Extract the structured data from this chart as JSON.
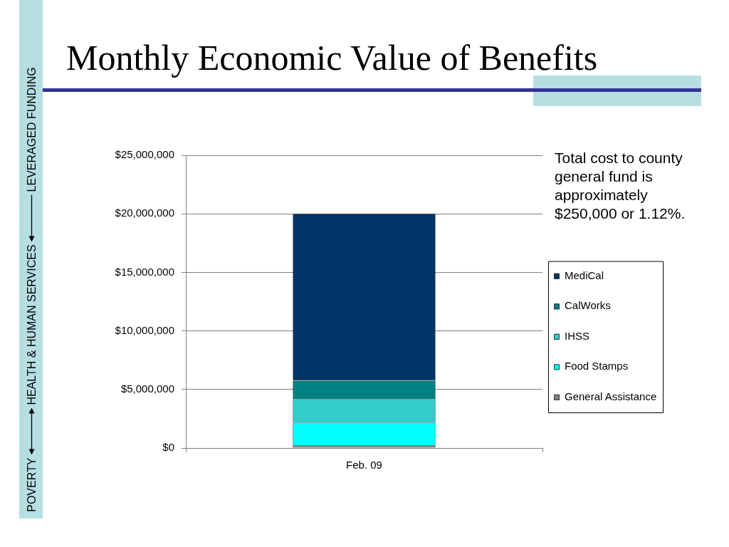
{
  "chart_data": {
    "type": "bar",
    "title": "Monthly Economic Value of Benefits",
    "categories": [
      "Feb. 09"
    ],
    "stacked": true,
    "series": [
      {
        "name": "General Assistance",
        "color": "#808080",
        "values": [
          200000
        ]
      },
      {
        "name": "Food Stamps",
        "color": "#00ffff",
        "values": [
          2000000
        ]
      },
      {
        "name": "IHSS",
        "color": "#33cccc",
        "values": [
          1950000
        ]
      },
      {
        "name": "CalWorks",
        "color": "#008080",
        "values": [
          1600000
        ]
      },
      {
        "name": "MediCal",
        "color": "#003366",
        "values": [
          14250000
        ]
      }
    ],
    "ylim": [
      0,
      25000000
    ],
    "yticks": [
      {
        "value": 0,
        "label": "$0"
      },
      {
        "value": 5000000,
        "label": "$5,000,000"
      },
      {
        "value": 10000000,
        "label": "$10,000,000"
      },
      {
        "value": 15000000,
        "label": "$15,000,000"
      },
      {
        "value": 20000000,
        "label": "$20,000,000"
      },
      {
        "value": 25000000,
        "label": "$25,000,000"
      }
    ],
    "grid": "y",
    "legend": "right",
    "annotations": [
      "Total cost to county general fund is approximately $250,000 or 1.12%.",
      "POVERTY",
      "HEALTH & HUMAN SERVICES",
      "LEVERAGED FUNDING"
    ]
  }
}
